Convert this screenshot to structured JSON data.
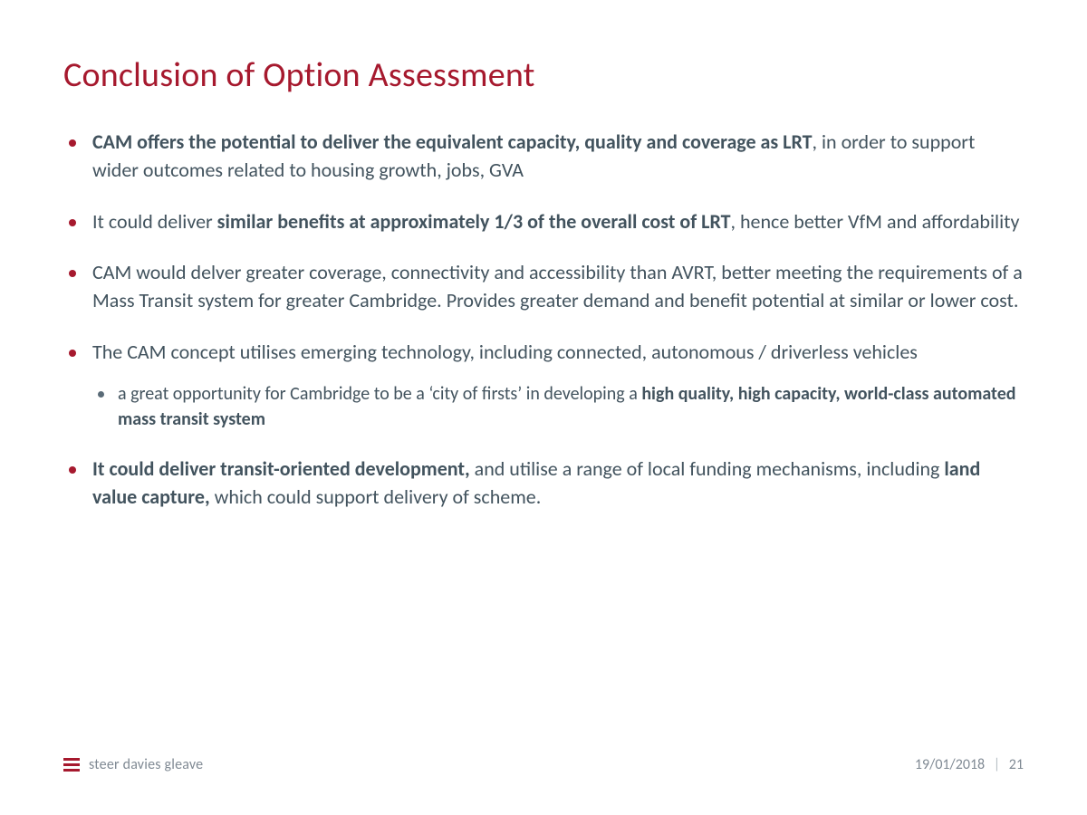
{
  "colors": {
    "accent": "#a6192e",
    "body_text": "#42535e",
    "muted": "#808a94",
    "background": "#ffffff"
  },
  "typography": {
    "title_fontsize_pt": 28,
    "body_fontsize_pt": 17,
    "sub_fontsize_pt": 15,
    "footer_fontsize_pt": 12,
    "font_family": "Segoe UI / Calibri"
  },
  "title": "Conclusion of Option Assessment",
  "bullets": [
    {
      "runs": [
        {
          "t": "CAM offers the potential to deliver the equivalent capacity, quality and coverage as LRT",
          "bold": true
        },
        {
          "t": ", in order to support wider outcomes related to housing growth, jobs, GVA",
          "bold": false
        }
      ]
    },
    {
      "runs": [
        {
          "t": "It could deliver ",
          "bold": false
        },
        {
          "t": "similar benefits at approximately 1/3 of the overall cost of LRT",
          "bold": true
        },
        {
          "t": ", hence better VfM and affordability",
          "bold": false
        }
      ]
    },
    {
      "runs": [
        {
          "t": "CAM would delver greater coverage, connectivity and accessibility than AVRT, better meeting the requirements of a Mass Transit system for greater Cambridge. Provides greater demand and benefit potential at similar or lower cost.",
          "bold": false
        }
      ]
    },
    {
      "runs": [
        {
          "t": "The CAM concept utilises emerging technology, including connected, autonomous / driverless vehicles",
          "bold": false
        }
      ],
      "sub": [
        {
          "runs": [
            {
              "t": "a great opportunity for Cambridge to be a ‘city of firsts’ in developing a ",
              "bold": false
            },
            {
              "t": "high quality, high capacity, world-class automated mass transit system",
              "bold": true
            }
          ]
        }
      ]
    },
    {
      "runs": [
        {
          "t": "It could deliver transit-oriented development,",
          "bold": true
        },
        {
          "t": " and utilise a range of local funding mechanisms, including ",
          "bold": false
        },
        {
          "t": "land value capture,",
          "bold": true
        },
        {
          "t": " which could support delivery of scheme.",
          "bold": false
        }
      ]
    }
  ],
  "footer": {
    "brand": "steer davies gleave",
    "date": "19/01/2018",
    "page": "21",
    "separator": "|"
  }
}
